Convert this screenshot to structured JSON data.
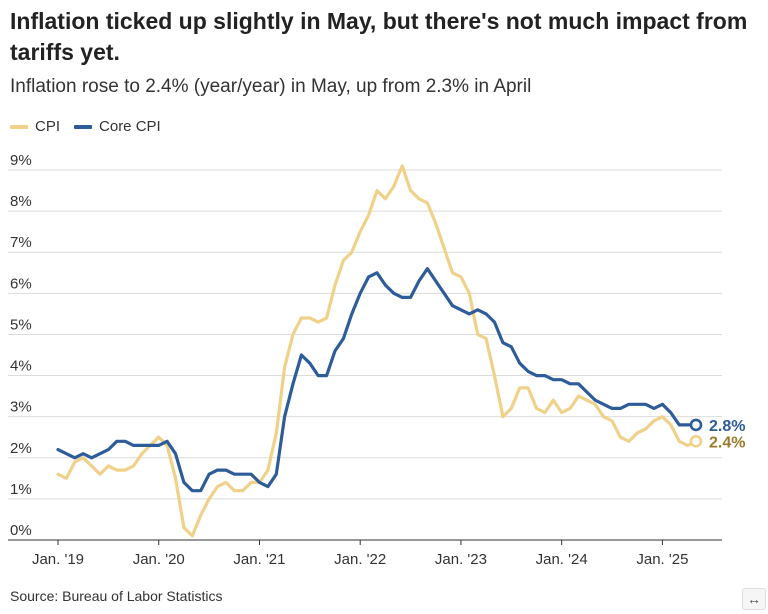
{
  "title": "Inflation ticked up slightly in May, but there's not much impact from tariffs yet.",
  "subtitle": "Inflation rose to 2.4% (year/year) in May, up from 2.3% in April",
  "source": "Source: Bureau of Labor Statistics",
  "expand_icon": "↔",
  "chart_data": {
    "type": "line",
    "title": "Inflation ticked up slightly in May, but there's not much impact from tariffs yet.",
    "subtitle": "Inflation rose to 2.4% (year/year) in May, up from 2.3% in April",
    "xlabel": "",
    "ylabel": "",
    "ylim": [
      0,
      9
    ],
    "xlim": [
      "2019-01",
      "2025-05"
    ],
    "y_ticks": [
      "0%",
      "1%",
      "2%",
      "3%",
      "4%",
      "5%",
      "6%",
      "7%",
      "8%",
      "9%"
    ],
    "x_ticks": [
      {
        "label": "Jan. '19",
        "date": "2019-01"
      },
      {
        "label": "Jan. '20",
        "date": "2020-01"
      },
      {
        "label": "Jan. '21",
        "date": "2021-01"
      },
      {
        "label": "Jan. '22",
        "date": "2022-01"
      },
      {
        "label": "Jan. '23",
        "date": "2023-01"
      },
      {
        "label": "Jan. '24",
        "date": "2024-01"
      },
      {
        "label": "Jan. '25",
        "date": "2025-01"
      }
    ],
    "grid": true,
    "legend_position": "top-left",
    "start_month": "2019-01",
    "series": [
      {
        "name": "CPI",
        "color": "#f0d18a",
        "end_label": "2.4%",
        "end_label_color": "#9a7b2e",
        "values": [
          1.6,
          1.5,
          1.9,
          2.0,
          1.8,
          1.6,
          1.8,
          1.7,
          1.7,
          1.8,
          2.1,
          2.3,
          2.5,
          2.3,
          1.5,
          0.3,
          0.1,
          0.6,
          1.0,
          1.3,
          1.4,
          1.2,
          1.2,
          1.4,
          1.4,
          1.7,
          2.6,
          4.2,
          5.0,
          5.4,
          5.4,
          5.3,
          5.4,
          6.2,
          6.8,
          7.0,
          7.5,
          7.9,
          8.5,
          8.3,
          8.6,
          9.1,
          8.5,
          8.3,
          8.2,
          7.7,
          7.1,
          6.5,
          6.4,
          6.0,
          5.0,
          4.9,
          4.0,
          3.0,
          3.2,
          3.7,
          3.7,
          3.2,
          3.1,
          3.4,
          3.1,
          3.2,
          3.5,
          3.4,
          3.3,
          3.0,
          2.9,
          2.5,
          2.4,
          2.6,
          2.7,
          2.9,
          3.0,
          2.8,
          2.4,
          2.3,
          2.4
        ]
      },
      {
        "name": "Core CPI",
        "color": "#2d5c99",
        "end_label": "2.8%",
        "end_label_color": "#2d5c99",
        "values": [
          2.2,
          2.1,
          2.0,
          2.1,
          2.0,
          2.1,
          2.2,
          2.4,
          2.4,
          2.3,
          2.3,
          2.3,
          2.3,
          2.4,
          2.1,
          1.4,
          1.2,
          1.2,
          1.6,
          1.7,
          1.7,
          1.6,
          1.6,
          1.6,
          1.4,
          1.3,
          1.6,
          3.0,
          3.8,
          4.5,
          4.3,
          4.0,
          4.0,
          4.6,
          4.9,
          5.5,
          6.0,
          6.4,
          6.5,
          6.2,
          6.0,
          5.9,
          5.9,
          6.3,
          6.6,
          6.3,
          6.0,
          5.7,
          5.6,
          5.5,
          5.6,
          5.5,
          5.3,
          4.8,
          4.7,
          4.3,
          4.1,
          4.0,
          4.0,
          3.9,
          3.9,
          3.8,
          3.8,
          3.6,
          3.4,
          3.3,
          3.2,
          3.2,
          3.3,
          3.3,
          3.3,
          3.2,
          3.3,
          3.1,
          2.8,
          2.8,
          2.8
        ]
      }
    ]
  }
}
